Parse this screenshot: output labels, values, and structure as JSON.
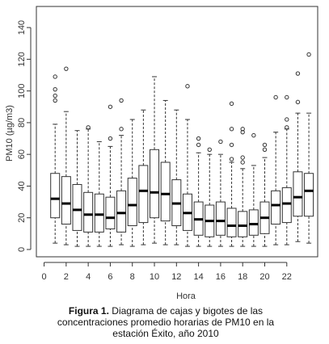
{
  "chart_data": {
    "type": "boxplot",
    "y_label": "PM10 (µg/m3)",
    "x_label": "Hora",
    "caption_label": "Figura 1.",
    "caption_text": "Diagrama de cajas y bigotes de las concentraciones promedio horarias de PM10 en la estación Éxito, año 2010",
    "x": [
      1,
      2,
      3,
      4,
      5,
      6,
      7,
      8,
      9,
      10,
      11,
      12,
      13,
      14,
      15,
      16,
      17,
      18,
      19,
      20,
      21,
      22,
      23,
      24
    ],
    "whisker_low": [
      4,
      3,
      2,
      2,
      2,
      2,
      3,
      2,
      3,
      4,
      3,
      3,
      2,
      2,
      2,
      2,
      2,
      2,
      2,
      2,
      3,
      3,
      5,
      4
    ],
    "q1": [
      20,
      16,
      12,
      11,
      11,
      13,
      11,
      15,
      17,
      20,
      18,
      15,
      12,
      9,
      8,
      9,
      8,
      8,
      9,
      10,
      16,
      17,
      21,
      21
    ],
    "median": [
      32,
      29,
      25,
      22,
      22,
      20,
      23,
      28,
      37,
      36,
      35,
      29,
      23,
      19,
      18,
      18,
      15,
      15,
      16,
      20,
      28,
      29,
      33,
      37
    ],
    "q3": [
      48,
      46,
      41,
      36,
      35,
      33,
      37,
      45,
      53,
      63,
      55,
      44,
      35,
      30,
      28,
      30,
      26,
      24,
      25,
      30,
      37,
      39,
      49,
      48
    ],
    "whisker_high": [
      79,
      87,
      75,
      76,
      68,
      65,
      72,
      82,
      88,
      109,
      94,
      88,
      82,
      61,
      60,
      60,
      55,
      51,
      53,
      58,
      74,
      76,
      86,
      86
    ],
    "outliers": [
      [
        94,
        97,
        101,
        109
      ],
      [
        114
      ],
      [],
      [
        77
      ],
      [],
      [
        90,
        70
      ],
      [
        94,
        76
      ],
      [],
      [],
      [],
      [],
      [],
      [
        103
      ],
      [
        66,
        70
      ],
      [
        63
      ],
      [
        68
      ],
      [
        92,
        76,
        66,
        57
      ],
      [
        76,
        74,
        58,
        55
      ],
      [
        72
      ],
      [
        66,
        63
      ],
      [
        96
      ],
      [
        96,
        82,
        77
      ],
      [
        111,
        93
      ],
      [
        123
      ]
    ],
    "xlim": [
      -0.7,
      24.8
    ],
    "xticks": [
      0,
      2,
      4,
      6,
      8,
      10,
      12,
      14,
      16,
      18,
      20,
      22
    ],
    "ylim": [
      -4.6,
      153.3
    ],
    "yticks": [
      0,
      20,
      40,
      60,
      80,
      100,
      120,
      140
    ]
  }
}
